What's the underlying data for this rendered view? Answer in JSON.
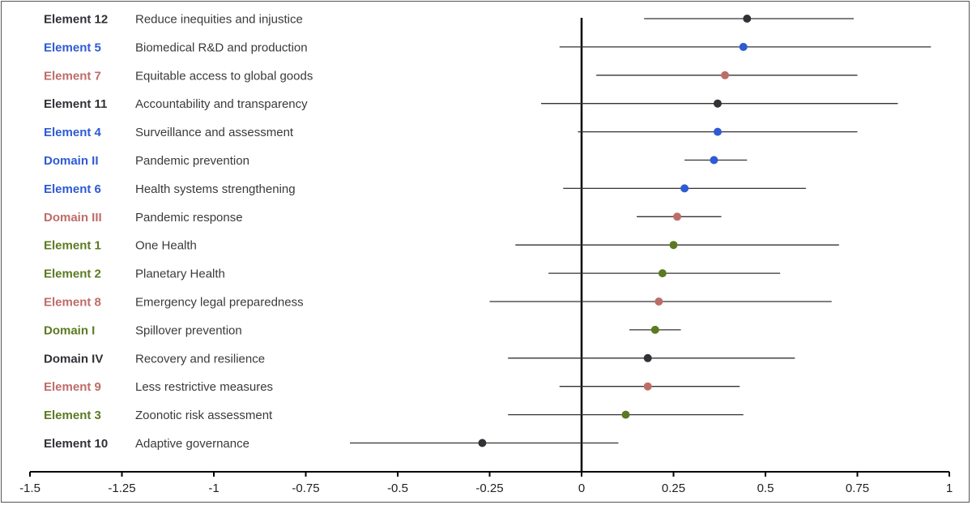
{
  "colors": {
    "Dark": "#333036",
    "Blue": "#2e5bd3",
    "Rose": "#be6c68",
    "Olive": "#5c7a21",
    "axis": "#000000",
    "whisker": "#333333"
  },
  "chart_data": {
    "type": "forest",
    "xlim": [
      -1.5,
      1
    ],
    "xticks": [
      "-1.5",
      "-1.25",
      "-1",
      "-0.75",
      "-0.5",
      "-0.25",
      "0",
      "0.25",
      "0.5",
      "0.75",
      "1"
    ],
    "xtick_values": [
      -1.5,
      -1.25,
      -1,
      -0.75,
      -0.5,
      -0.25,
      0,
      0.25,
      0.5,
      0.75,
      1
    ],
    "reference_line": 0,
    "rows": [
      {
        "name": "Element 12",
        "desc": "Reduce inequities and injustice",
        "group": "Dark",
        "estimate": 0.45,
        "low": 0.17,
        "high": 0.74
      },
      {
        "name": "Element 5",
        "desc": "Biomedical R&D and production",
        "group": "Blue",
        "estimate": 0.44,
        "low": -0.06,
        "high": 0.95
      },
      {
        "name": "Element 7",
        "desc": "Equitable access to global goods",
        "group": "Rose",
        "estimate": 0.39,
        "low": 0.04,
        "high": 0.75
      },
      {
        "name": "Element 11",
        "desc": "Accountability and transparency",
        "group": "Dark",
        "estimate": 0.37,
        "low": -0.11,
        "high": 0.86
      },
      {
        "name": "Element 4",
        "desc": "Surveillance and assessment",
        "group": "Blue",
        "estimate": 0.37,
        "low": -0.01,
        "high": 0.75
      },
      {
        "name": "Domain II",
        "desc": "Pandemic prevention",
        "group": "Blue",
        "estimate": 0.36,
        "low": 0.28,
        "high": 0.45
      },
      {
        "name": "Element 6",
        "desc": "Health systems strengthening",
        "group": "Blue",
        "estimate": 0.28,
        "low": -0.05,
        "high": 0.61
      },
      {
        "name": "Domain III",
        "desc": "Pandemic response",
        "group": "Rose",
        "estimate": 0.26,
        "low": 0.15,
        "high": 0.38
      },
      {
        "name": "Element 1",
        "desc": "One Health",
        "group": "Olive",
        "estimate": 0.25,
        "low": -0.18,
        "high": 0.7
      },
      {
        "name": "Element 2",
        "desc": "Planetary Health",
        "group": "Olive",
        "estimate": 0.22,
        "low": -0.09,
        "high": 0.54
      },
      {
        "name": "Element 8",
        "desc": "Emergency legal preparedness",
        "group": "Rose",
        "estimate": 0.21,
        "low": -0.25,
        "high": 0.68
      },
      {
        "name": "Domain I",
        "desc": "Spillover prevention",
        "group": "Olive",
        "estimate": 0.2,
        "low": 0.13,
        "high": 0.27
      },
      {
        "name": "Domain IV",
        "desc": "Recovery and resilience",
        "group": "Dark",
        "estimate": 0.18,
        "low": -0.2,
        "high": 0.58
      },
      {
        "name": "Element 9",
        "desc": "Less restrictive measures",
        "group": "Rose",
        "estimate": 0.18,
        "low": -0.06,
        "high": 0.43
      },
      {
        "name": "Element 3",
        "desc": "Zoonotic risk assessment",
        "group": "Olive",
        "estimate": 0.12,
        "low": -0.2,
        "high": 0.44
      },
      {
        "name": "Element 10",
        "desc": "Adaptive governance",
        "group": "Dark",
        "estimate": -0.27,
        "low": -0.63,
        "high": 0.1
      }
    ]
  }
}
